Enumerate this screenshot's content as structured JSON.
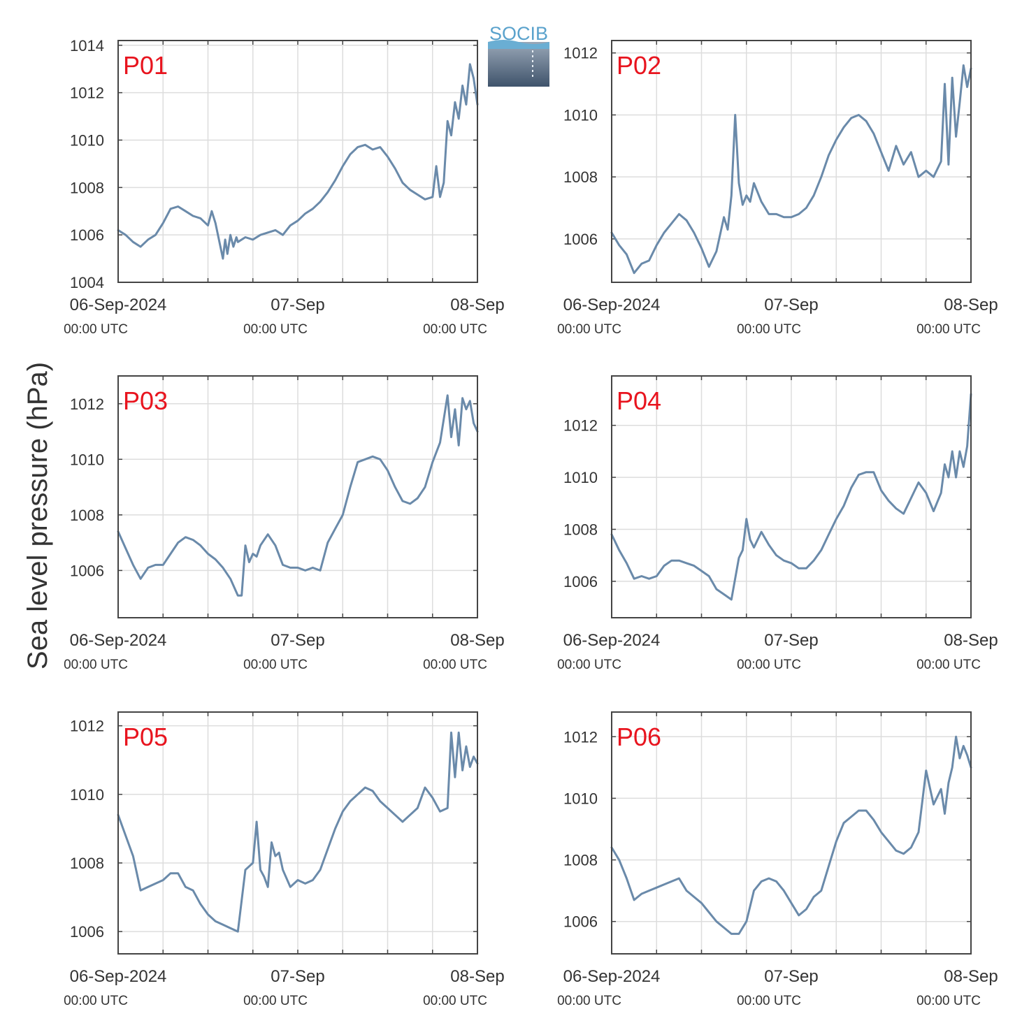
{
  "figure": {
    "ylabel": "Sea level pressure (hPa)",
    "logo_text": "SOCIB",
    "colors": {
      "line": "#6a8aaa",
      "panel_label": "#e8141e",
      "grid": "#dddddd",
      "axis": "#444444",
      "text": "#333333"
    }
  },
  "chart_data": [
    {
      "type": "line",
      "title": "P01",
      "x_ticks": [
        {
          "t": 0,
          "line1": "06-Sep-2024",
          "line2": "00:00 UTC"
        },
        {
          "t": 24,
          "line1": "07-Sep",
          "line2": "00:00 UTC"
        },
        {
          "t": 48,
          "line1": "08-Sep",
          "line2": "00:00 UTC"
        }
      ],
      "xlim_hours": [
        0,
        48
      ],
      "ylim": [
        1004,
        1014.2
      ],
      "yticks": [
        1004,
        1006,
        1008,
        1010,
        1012,
        1014
      ],
      "x_hours": [
        0,
        1,
        2,
        3,
        4,
        5,
        6,
        7,
        8,
        9,
        10,
        11,
        12,
        12.5,
        13,
        14,
        14.3,
        14.6,
        15,
        15.4,
        15.8,
        16,
        17,
        18,
        19,
        20,
        21,
        22,
        23,
        24,
        25,
        26,
        27,
        28,
        29,
        30,
        31,
        32,
        33,
        34,
        35,
        36,
        37,
        38,
        39,
        40,
        41,
        42,
        42.5,
        43,
        43.5,
        44,
        44.5,
        45,
        45.5,
        46,
        46.5,
        47,
        47.5,
        48
      ],
      "y_hpa": [
        1006.2,
        1006.0,
        1005.7,
        1005.5,
        1005.8,
        1006.0,
        1006.5,
        1007.1,
        1007.2,
        1007.0,
        1006.8,
        1006.7,
        1006.4,
        1007.0,
        1006.5,
        1005.0,
        1005.8,
        1005.2,
        1006.0,
        1005.5,
        1005.9,
        1005.7,
        1005.9,
        1005.8,
        1006.0,
        1006.1,
        1006.2,
        1006.0,
        1006.4,
        1006.6,
        1006.9,
        1007.1,
        1007.4,
        1007.8,
        1008.3,
        1008.9,
        1009.4,
        1009.7,
        1009.8,
        1009.6,
        1009.7,
        1009.3,
        1008.8,
        1008.2,
        1007.9,
        1007.7,
        1007.5,
        1007.6,
        1008.9,
        1007.6,
        1008.2,
        1010.8,
        1010.2,
        1011.6,
        1010.9,
        1012.3,
        1011.5,
        1013.2,
        1012.6,
        1011.5
      ]
    },
    {
      "type": "line",
      "title": "P02",
      "x_ticks": [
        {
          "t": 0,
          "line1": "06-Sep-2024",
          "line2": "00:00 UTC"
        },
        {
          "t": 24,
          "line1": "07-Sep",
          "line2": "00:00 UTC"
        },
        {
          "t": 48,
          "line1": "08-Sep",
          "line2": "00:00 UTC"
        }
      ],
      "xlim_hours": [
        0,
        48
      ],
      "ylim": [
        1004.6,
        1012.4
      ],
      "yticks": [
        1006,
        1008,
        1010,
        1012
      ],
      "x_hours": [
        0,
        1,
        2,
        3,
        4,
        5,
        6,
        7,
        8,
        9,
        10,
        11,
        12,
        13,
        14,
        15,
        15.5,
        16,
        16.5,
        17,
        17.5,
        18,
        18.5,
        19,
        20,
        21,
        22,
        23,
        24,
        25,
        26,
        27,
        28,
        29,
        30,
        31,
        32,
        33,
        34,
        35,
        36,
        37,
        38,
        39,
        40,
        41,
        42,
        43,
        44,
        44.5,
        45,
        45.5,
        46,
        46.5,
        47,
        47.5,
        48
      ],
      "y_hpa": [
        1006.2,
        1005.8,
        1005.5,
        1004.9,
        1005.2,
        1005.3,
        1005.8,
        1006.2,
        1006.5,
        1006.8,
        1006.6,
        1006.2,
        1005.7,
        1005.1,
        1005.6,
        1006.7,
        1006.3,
        1007.4,
        1010.0,
        1007.8,
        1007.1,
        1007.4,
        1007.2,
        1007.8,
        1007.2,
        1006.8,
        1006.8,
        1006.7,
        1006.7,
        1006.8,
        1007.0,
        1007.4,
        1008.0,
        1008.7,
        1009.2,
        1009.6,
        1009.9,
        1010.0,
        1009.8,
        1009.4,
        1008.8,
        1008.2,
        1009.0,
        1008.4,
        1008.8,
        1008.0,
        1008.2,
        1008.0,
        1008.5,
        1011.0,
        1008.4,
        1011.2,
        1009.3,
        1010.4,
        1011.6,
        1010.9,
        1011.5
      ]
    },
    {
      "type": "line",
      "title": "P03",
      "x_ticks": [
        {
          "t": 0,
          "line1": "06-Sep-2024",
          "line2": "00:00 UTC"
        },
        {
          "t": 24,
          "line1": "07-Sep",
          "line2": "00:00 UTC"
        },
        {
          "t": 48,
          "line1": "08-Sep",
          "line2": "00:00 UTC"
        }
      ],
      "xlim_hours": [
        0,
        48
      ],
      "ylim": [
        1004.3,
        1013.0
      ],
      "yticks": [
        1006,
        1008,
        1010,
        1012
      ],
      "x_hours": [
        0,
        1,
        2,
        3,
        4,
        5,
        6,
        7,
        8,
        9,
        10,
        11,
        12,
        13,
        14,
        15,
        16,
        16.5,
        17,
        17.5,
        18,
        18.5,
        19,
        20,
        21,
        22,
        23,
        24,
        25,
        26,
        27,
        28,
        29,
        30,
        31,
        32,
        33,
        34,
        35,
        36,
        37,
        38,
        39,
        40,
        41,
        42,
        43,
        44,
        44.5,
        45,
        45.5,
        46,
        46.5,
        47,
        47.5,
        48
      ],
      "y_hpa": [
        1007.4,
        1006.8,
        1006.2,
        1005.7,
        1006.1,
        1006.2,
        1006.2,
        1006.6,
        1007.0,
        1007.2,
        1007.1,
        1006.9,
        1006.6,
        1006.4,
        1006.1,
        1005.7,
        1005.1,
        1005.1,
        1006.9,
        1006.3,
        1006.6,
        1006.5,
        1006.9,
        1007.3,
        1006.9,
        1006.2,
        1006.1,
        1006.1,
        1006.0,
        1006.1,
        1006.0,
        1007.0,
        1007.5,
        1008.0,
        1009.0,
        1009.9,
        1010.0,
        1010.1,
        1010.0,
        1009.6,
        1009.0,
        1008.5,
        1008.4,
        1008.6,
        1009.0,
        1009.9,
        1010.6,
        1012.3,
        1010.8,
        1011.8,
        1010.5,
        1012.2,
        1011.8,
        1012.1,
        1011.3,
        1011.0
      ]
    },
    {
      "type": "line",
      "title": "P04",
      "x_ticks": [
        {
          "t": 0,
          "line1": "06-Sep-2024",
          "line2": "00:00 UTC"
        },
        {
          "t": 24,
          "line1": "07-Sep",
          "line2": "00:00 UTC"
        },
        {
          "t": 48,
          "line1": "08-Sep",
          "line2": "00:00 UTC"
        }
      ],
      "xlim_hours": [
        0,
        48
      ],
      "ylim": [
        1004.6,
        1013.9
      ],
      "yticks": [
        1006,
        1008,
        1010,
        1012
      ],
      "x_hours": [
        0,
        1,
        2,
        3,
        4,
        5,
        6,
        7,
        8,
        9,
        10,
        11,
        12,
        13,
        14,
        15,
        16,
        17,
        17.5,
        18,
        18.5,
        19,
        20,
        21,
        22,
        23,
        24,
        25,
        26,
        27,
        28,
        29,
        30,
        31,
        32,
        33,
        34,
        35,
        36,
        37,
        38,
        39,
        40,
        41,
        42,
        43,
        44,
        44.5,
        45,
        45.5,
        46,
        46.5,
        47,
        47.5,
        48
      ],
      "y_hpa": [
        1007.8,
        1007.2,
        1006.7,
        1006.1,
        1006.2,
        1006.1,
        1006.2,
        1006.6,
        1006.8,
        1006.8,
        1006.7,
        1006.6,
        1006.4,
        1006.2,
        1005.7,
        1005.5,
        1005.3,
        1006.9,
        1007.2,
        1008.4,
        1007.6,
        1007.3,
        1007.9,
        1007.4,
        1007.0,
        1006.8,
        1006.7,
        1006.5,
        1006.5,
        1006.8,
        1007.2,
        1007.8,
        1008.4,
        1008.9,
        1009.6,
        1010.1,
        1010.2,
        1010.2,
        1009.5,
        1009.1,
        1008.8,
        1008.6,
        1009.2,
        1009.8,
        1009.4,
        1008.7,
        1009.4,
        1010.5,
        1010.0,
        1011.0,
        1010.0,
        1011.0,
        1010.4,
        1011.2,
        1013.2
      ]
    },
    {
      "type": "line",
      "title": "P05",
      "x_ticks": [
        {
          "t": 0,
          "line1": "06-Sep-2024",
          "line2": "00:00 UTC"
        },
        {
          "t": 24,
          "line1": "07-Sep",
          "line2": "00:00 UTC"
        },
        {
          "t": 48,
          "line1": "08-Sep",
          "line2": "00:00 UTC"
        }
      ],
      "xlim_hours": [
        0,
        48
      ],
      "ylim": [
        1005.35,
        1012.4
      ],
      "yticks": [
        1006,
        1008,
        1010,
        1012
      ],
      "x_hours": [
        0,
        1,
        2,
        3,
        4,
        5,
        6,
        7,
        8,
        9,
        10,
        11,
        12,
        13,
        14,
        15,
        16,
        17,
        18,
        18.5,
        19,
        19.5,
        20,
        20.5,
        21,
        21.5,
        22,
        23,
        24,
        25,
        26,
        27,
        28,
        29,
        30,
        31,
        32,
        33,
        34,
        35,
        36,
        37,
        38,
        39,
        40,
        41,
        42,
        43,
        44,
        44.5,
        45,
        45.5,
        46,
        46.5,
        47,
        47.5,
        48
      ],
      "y_hpa": [
        1009.4,
        1008.8,
        1008.2,
        1007.2,
        1007.3,
        1007.4,
        1007.5,
        1007.7,
        1007.7,
        1007.3,
        1007.2,
        1006.8,
        1006.5,
        1006.3,
        1006.2,
        1006.1,
        1006.0,
        1007.8,
        1008.0,
        1009.2,
        1007.8,
        1007.6,
        1007.3,
        1008.6,
        1008.2,
        1008.3,
        1007.8,
        1007.3,
        1007.5,
        1007.4,
        1007.5,
        1007.8,
        1008.4,
        1009.0,
        1009.5,
        1009.8,
        1010.0,
        1010.2,
        1010.1,
        1009.8,
        1009.6,
        1009.4,
        1009.2,
        1009.4,
        1009.6,
        1010.2,
        1009.9,
        1009.5,
        1009.6,
        1011.8,
        1010.5,
        1011.8,
        1010.7,
        1011.4,
        1010.8,
        1011.1,
        1010.9
      ]
    },
    {
      "type": "line",
      "title": "P06",
      "x_ticks": [
        {
          "t": 0,
          "line1": "06-Sep-2024",
          "line2": "00:00 UTC"
        },
        {
          "t": 24,
          "line1": "07-Sep",
          "line2": "00:00 UTC"
        },
        {
          "t": 48,
          "line1": "08-Sep",
          "line2": "00:00 UTC"
        }
      ],
      "xlim_hours": [
        0,
        48
      ],
      "ylim": [
        1004.95,
        1012.8
      ],
      "yticks": [
        1006,
        1008,
        1010,
        1012
      ],
      "x_hours": [
        0,
        1,
        2,
        3,
        4,
        5,
        6,
        7,
        8,
        9,
        10,
        11,
        12,
        13,
        14,
        15,
        16,
        17,
        18,
        19,
        20,
        21,
        22,
        23,
        24,
        25,
        26,
        27,
        28,
        29,
        30,
        31,
        32,
        33,
        34,
        35,
        36,
        37,
        38,
        39,
        40,
        41,
        42,
        43,
        44,
        44.5,
        45,
        45.5,
        46,
        46.5,
        47,
        47.5,
        48
      ],
      "y_hpa": [
        1008.4,
        1008.0,
        1007.4,
        1006.7,
        1006.9,
        1007.0,
        1007.1,
        1007.2,
        1007.3,
        1007.4,
        1007.0,
        1006.8,
        1006.6,
        1006.3,
        1006.0,
        1005.8,
        1005.6,
        1005.6,
        1006.0,
        1007.0,
        1007.3,
        1007.4,
        1007.3,
        1007.0,
        1006.6,
        1006.2,
        1006.4,
        1006.8,
        1007.0,
        1007.8,
        1008.6,
        1009.2,
        1009.4,
        1009.6,
        1009.6,
        1009.3,
        1008.9,
        1008.6,
        1008.3,
        1008.2,
        1008.4,
        1008.9,
        1010.9,
        1009.8,
        1010.3,
        1009.5,
        1010.5,
        1011.0,
        1012.0,
        1011.3,
        1011.7,
        1011.4,
        1011.0
      ]
    }
  ]
}
